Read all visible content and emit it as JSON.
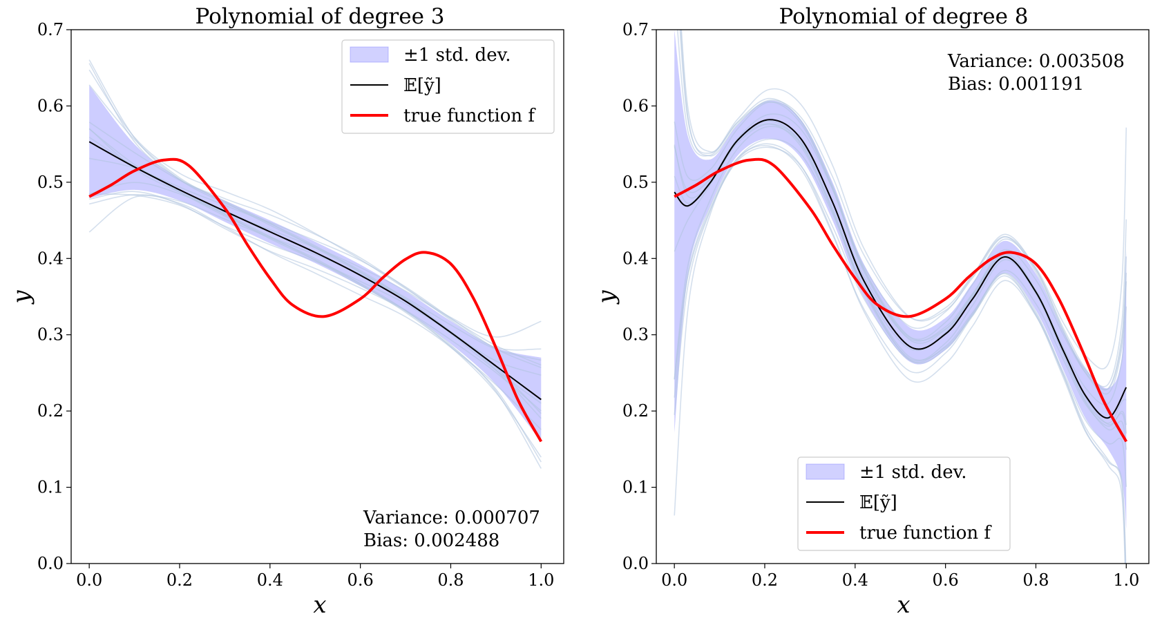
{
  "chart_data": [
    {
      "type": "line",
      "title": "Polynomial of degree 3",
      "xlabel": "x",
      "ylabel": "y",
      "xlim": [
        -0.04,
        1.05
      ],
      "ylim": [
        0.0,
        0.7
      ],
      "xticks": [
        "0.0",
        "0.2",
        "0.4",
        "0.6",
        "0.8",
        "1.0"
      ],
      "yticks": [
        "0.0",
        "0.1",
        "0.2",
        "0.3",
        "0.4",
        "0.5",
        "0.6",
        "0.7"
      ],
      "legend": {
        "position": "top-right",
        "entries": [
          "±1 std. dev.",
          "𝔼[ỹ]",
          "true function f"
        ]
      },
      "annotation": {
        "position": "bottom-right",
        "variance": "Variance: 0.000707",
        "bias": "Bias: 0.002488"
      },
      "series": [
        {
          "name": "𝔼[ỹ]",
          "color": "#000000",
          "x": [
            0.0,
            0.1,
            0.2,
            0.3,
            0.4,
            0.5,
            0.6,
            0.7,
            0.8,
            0.9,
            1.0
          ],
          "y": [
            0.553,
            0.52,
            0.49,
            0.462,
            0.435,
            0.408,
            0.378,
            0.344,
            0.303,
            0.259,
            0.215
          ]
        },
        {
          "name": "true function f",
          "color": "#ff0000",
          "x": [
            0.0,
            0.05,
            0.1,
            0.165,
            0.22,
            0.3,
            0.35,
            0.4,
            0.45,
            0.52,
            0.6,
            0.65,
            0.7,
            0.745,
            0.8,
            0.85,
            0.9,
            0.95,
            1.0
          ],
          "y": [
            0.481,
            0.497,
            0.515,
            0.529,
            0.522,
            0.466,
            0.418,
            0.374,
            0.339,
            0.324,
            0.347,
            0.375,
            0.399,
            0.408,
            0.393,
            0.348,
            0.283,
            0.213,
            0.16
          ]
        }
      ],
      "band": {
        "name": "±1 std. dev.",
        "color": "#7b7bff",
        "x": [
          0.0,
          0.1,
          0.2,
          0.3,
          0.4,
          0.5,
          0.6,
          0.7,
          0.8,
          0.9,
          1.0
        ],
        "upper": [
          0.627,
          0.55,
          0.504,
          0.476,
          0.45,
          0.422,
          0.392,
          0.357,
          0.318,
          0.283,
          0.27
        ],
        "lower": [
          0.479,
          0.49,
          0.476,
          0.448,
          0.42,
          0.394,
          0.364,
          0.331,
          0.288,
          0.235,
          0.16
        ]
      }
    },
    {
      "type": "line",
      "title": "Polynomial of degree 8",
      "xlabel": "x",
      "ylabel": "y",
      "xlim": [
        -0.04,
        1.05
      ],
      "ylim": [
        0.0,
        0.7
      ],
      "xticks": [
        "0.0",
        "0.2",
        "0.4",
        "0.6",
        "0.8",
        "1.0"
      ],
      "yticks": [
        "0.0",
        "0.1",
        "0.2",
        "0.3",
        "0.4",
        "0.5",
        "0.6",
        "0.7"
      ],
      "legend": {
        "position": "bottom-center",
        "entries": [
          "±1 std. dev.",
          "𝔼[ỹ]",
          "true function f"
        ]
      },
      "annotation": {
        "position": "top-right",
        "variance": "Variance: 0.003508",
        "bias": "Bias: 0.001191"
      },
      "series": [
        {
          "name": "𝔼[ỹ]",
          "color": "#000000",
          "x": [
            0.0,
            0.03,
            0.08,
            0.14,
            0.21,
            0.28,
            0.35,
            0.42,
            0.52,
            0.6,
            0.66,
            0.73,
            0.8,
            0.86,
            0.91,
            0.96,
            1.0
          ],
          "y": [
            0.487,
            0.469,
            0.5,
            0.555,
            0.582,
            0.557,
            0.474,
            0.37,
            0.285,
            0.301,
            0.347,
            0.402,
            0.356,
            0.28,
            0.22,
            0.191,
            0.231
          ]
        },
        {
          "name": "true function f",
          "color": "#ff0000",
          "x": [
            0.0,
            0.05,
            0.1,
            0.165,
            0.22,
            0.3,
            0.35,
            0.4,
            0.45,
            0.52,
            0.6,
            0.65,
            0.7,
            0.745,
            0.8,
            0.85,
            0.9,
            0.95,
            1.0
          ],
          "y": [
            0.481,
            0.497,
            0.515,
            0.529,
            0.522,
            0.466,
            0.418,
            0.374,
            0.339,
            0.324,
            0.347,
            0.375,
            0.399,
            0.408,
            0.393,
            0.348,
            0.283,
            0.213,
            0.16
          ]
        }
      ],
      "band": {
        "name": "±1 std. dev.",
        "color": "#7b7bff",
        "x": [
          0.0,
          0.03,
          0.08,
          0.14,
          0.21,
          0.28,
          0.35,
          0.42,
          0.52,
          0.6,
          0.66,
          0.73,
          0.8,
          0.86,
          0.91,
          0.96,
          0.99,
          1.0
        ],
        "upper": [
          0.7,
          0.56,
          0.53,
          0.575,
          0.607,
          0.582,
          0.5,
          0.392,
          0.31,
          0.322,
          0.368,
          0.423,
          0.38,
          0.305,
          0.255,
          0.23,
          0.27,
          0.41
        ],
        "lower": [
          0.17,
          0.38,
          0.47,
          0.535,
          0.557,
          0.532,
          0.45,
          0.348,
          0.265,
          0.28,
          0.326,
          0.381,
          0.332,
          0.255,
          0.19,
          0.15,
          0.11,
          0.045
        ]
      }
    }
  ]
}
